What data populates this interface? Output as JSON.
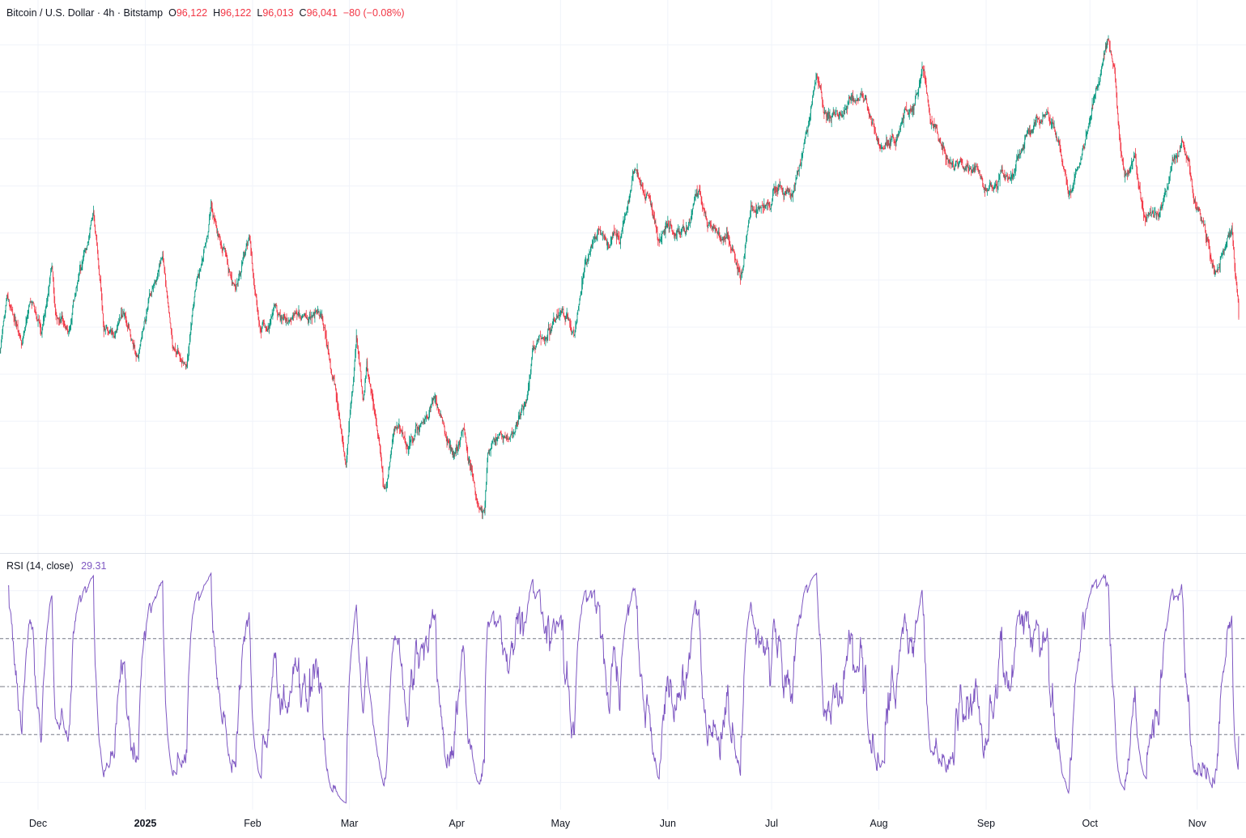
{
  "colors": {
    "up": "#089981",
    "down": "#f23645",
    "rsi": "#7e57c2",
    "grid": "#f0f3fa",
    "axis_text": "#131722"
  },
  "legend": {
    "symbol": "Bitcoin / U.S. Dollar · 4h · Bitstamp",
    "open_label": "O",
    "open": "96,122",
    "high_label": "H",
    "high": "96,122",
    "low_label": "L",
    "low": "96,013",
    "close_label": "C",
    "close": "96,041",
    "change": "−80 (−0.08%)"
  },
  "rsi_legend": {
    "title": "RSI (14, close)",
    "value": "29.31"
  },
  "chart_data": {
    "type": "candlestick",
    "timeframe": "4h",
    "x_range": [
      "2024-11-20",
      "2025-11-13"
    ],
    "price_range": [
      74000,
      126500
    ],
    "x_tick_labels": [
      {
        "label": "Dec",
        "date": "2024-12-01"
      },
      {
        "label": "2025",
        "date": "2025-01-01",
        "bold": true
      },
      {
        "label": "Feb",
        "date": "2025-02-01"
      },
      {
        "label": "Mar",
        "date": "2025-03-01"
      },
      {
        "label": "Apr",
        "date": "2025-04-01"
      },
      {
        "label": "May",
        "date": "2025-05-01"
      },
      {
        "label": "Jun",
        "date": "2025-06-01"
      },
      {
        "label": "Jul",
        "date": "2025-07-01"
      },
      {
        "label": "Aug",
        "date": "2025-08-01"
      },
      {
        "label": "Sep",
        "date": "2025-09-01"
      },
      {
        "label": "Oct",
        "date": "2025-10-01"
      },
      {
        "label": "Nov",
        "date": "2025-11-01"
      }
    ],
    "price_path": [
      [
        "2024-11-20",
        92500
      ],
      [
        "2024-11-22",
        98000
      ],
      [
        "2024-11-26",
        93000
      ],
      [
        "2024-11-29",
        96500
      ],
      [
        "2024-12-02",
        95500
      ],
      [
        "2024-12-05",
        101500
      ],
      [
        "2024-12-06",
        97000
      ],
      [
        "2024-12-10",
        95500
      ],
      [
        "2024-12-13",
        101000
      ],
      [
        "2024-12-17",
        107500
      ],
      [
        "2024-12-20",
        94500
      ],
      [
        "2024-12-23",
        94000
      ],
      [
        "2024-12-26",
        96000
      ],
      [
        "2024-12-30",
        92000
      ],
      [
        "2025-01-02",
        97000
      ],
      [
        "2025-01-06",
        102000
      ],
      [
        "2025-01-09",
        92500
      ],
      [
        "2025-01-13",
        90000
      ],
      [
        "2025-01-16",
        100000
      ],
      [
        "2025-01-20",
        107500
      ],
      [
        "2025-01-23",
        103500
      ],
      [
        "2025-01-27",
        98500
      ],
      [
        "2025-01-31",
        104000
      ],
      [
        "2025-02-03",
        95000
      ],
      [
        "2025-02-07",
        97000
      ],
      [
        "2025-02-12",
        96000
      ],
      [
        "2025-02-17",
        96500
      ],
      [
        "2025-02-21",
        97000
      ],
      [
        "2025-02-25",
        88000
      ],
      [
        "2025-02-28",
        80500
      ],
      [
        "2025-03-03",
        93500
      ],
      [
        "2025-03-05",
        87000
      ],
      [
        "2025-03-06",
        90500
      ],
      [
        "2025-03-09",
        83000
      ],
      [
        "2025-03-11",
        77500
      ],
      [
        "2025-03-14",
        84000
      ],
      [
        "2025-03-18",
        82500
      ],
      [
        "2025-03-22",
        85000
      ],
      [
        "2025-03-26",
        87500
      ],
      [
        "2025-03-31",
        82000
      ],
      [
        "2025-04-03",
        83000
      ],
      [
        "2025-04-07",
        76500
      ],
      [
        "2025-04-09",
        75500
      ],
      [
        "2025-04-10",
        82000
      ],
      [
        "2025-04-13",
        84500
      ],
      [
        "2025-04-17",
        84500
      ],
      [
        "2025-04-21",
        87500
      ],
      [
        "2025-04-23",
        93500
      ],
      [
        "2025-04-27",
        94000
      ],
      [
        "2025-05-01",
        96500
      ],
      [
        "2025-05-05",
        94000
      ],
      [
        "2025-05-08",
        102000
      ],
      [
        "2025-05-12",
        104000
      ],
      [
        "2025-05-18",
        104500
      ],
      [
        "2025-05-22",
        111500
      ],
      [
        "2025-05-26",
        109500
      ],
      [
        "2025-05-30",
        104000
      ],
      [
        "2025-06-02",
        105500
      ],
      [
        "2025-06-06",
        104500
      ],
      [
        "2025-06-10",
        109500
      ],
      [
        "2025-06-14",
        105500
      ],
      [
        "2025-06-18",
        104500
      ],
      [
        "2025-06-22",
        100500
      ],
      [
        "2025-06-25",
        107000
      ],
      [
        "2025-06-30",
        107500
      ],
      [
        "2025-07-03",
        109500
      ],
      [
        "2025-07-07",
        108500
      ],
      [
        "2025-07-10",
        113500
      ],
      [
        "2025-07-14",
        121500
      ],
      [
        "2025-07-16",
        118000
      ],
      [
        "2025-07-20",
        117500
      ],
      [
        "2025-07-24",
        118500
      ],
      [
        "2025-07-28",
        118000
      ],
      [
        "2025-08-01",
        113500
      ],
      [
        "2025-08-05",
        114500
      ],
      [
        "2025-08-09",
        117000
      ],
      [
        "2025-08-14",
        123000
      ],
      [
        "2025-08-16",
        117500
      ],
      [
        "2025-08-20",
        113500
      ],
      [
        "2025-08-24",
        113000
      ],
      [
        "2025-08-28",
        112000
      ],
      [
        "2025-09-01",
        108500
      ],
      [
        "2025-09-05",
        111000
      ],
      [
        "2025-09-09",
        111500
      ],
      [
        "2025-09-13",
        115500
      ],
      [
        "2025-09-18",
        117000
      ],
      [
        "2025-09-22",
        115000
      ],
      [
        "2025-09-25",
        109000
      ],
      [
        "2025-09-28",
        112500
      ],
      [
        "2025-10-02",
        118500
      ],
      [
        "2025-10-06",
        125000
      ],
      [
        "2025-10-08",
        122500
      ],
      [
        "2025-10-10",
        113000
      ],
      [
        "2025-10-11",
        110500
      ],
      [
        "2025-10-14",
        113500
      ],
      [
        "2025-10-17",
        106500
      ],
      [
        "2025-10-21",
        108500
      ],
      [
        "2025-10-24",
        111000
      ],
      [
        "2025-10-28",
        115000
      ],
      [
        "2025-10-31",
        109500
      ],
      [
        "2025-11-04",
        104000
      ],
      [
        "2025-11-06",
        101000
      ],
      [
        "2025-11-09",
        104000
      ],
      [
        "2025-11-11",
        105500
      ],
      [
        "2025-11-13",
        96000
      ]
    ],
    "rsi": {
      "period": 14,
      "source": "close",
      "last": 29.31,
      "range": [
        0,
        100
      ],
      "bands": [
        70,
        50,
        30
      ]
    }
  }
}
